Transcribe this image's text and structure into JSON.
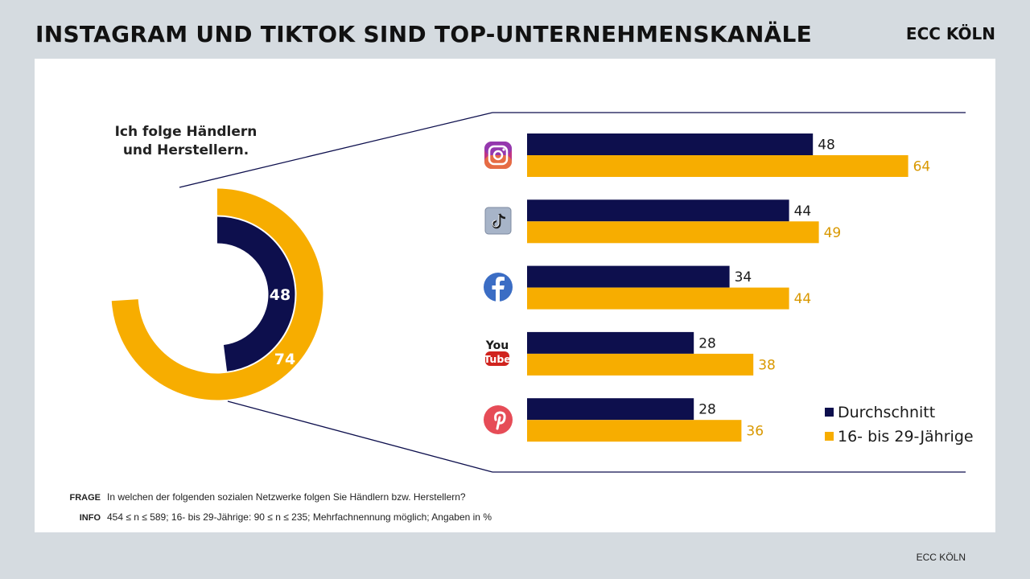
{
  "header": {
    "title": "INSTAGRAM UND TIKTOK SIND TOP-UNTERNEHMENSKANÄLE",
    "brand": "ECC KÖLN"
  },
  "donut": {
    "label_line1": "Ich folge Händlern",
    "label_line2": "und Herstellern.",
    "inner_value": 48,
    "outer_value": 74,
    "inner_color": "#0d0f4d",
    "outer_color": "#f7ad00"
  },
  "chart_data": {
    "type": "bar",
    "orientation": "horizontal",
    "categories": [
      "Instagram",
      "TikTok",
      "Facebook",
      "YouTube",
      "Pinterest"
    ],
    "series": [
      {
        "name": "Durchschnitt",
        "values": [
          48,
          44,
          34,
          28,
          28
        ],
        "color": "#0d0f4d"
      },
      {
        "name": "16- bis 29-Jährige",
        "values": [
          64,
          49,
          44,
          38,
          36
        ],
        "color": "#f7ad00"
      }
    ],
    "legend_position": "bottom-right"
  },
  "icons": [
    "instagram-icon",
    "tiktok-icon",
    "facebook-icon",
    "youtube-icon",
    "pinterest-icon"
  ],
  "notes": {
    "frage_label": "FRAGE",
    "frage_text": "In welchen der folgenden sozialen Netzwerke folgen Sie Händlern bzw. Herstellern?",
    "info_label": "INFO",
    "info_text": "454 ≤ n ≤ 589; 16- bis 29-Jährige: 90 ≤ n ≤ 235; Mehrfachnennung möglich; Angaben in %"
  },
  "footer": {
    "brand": "ECC KÖLN"
  }
}
